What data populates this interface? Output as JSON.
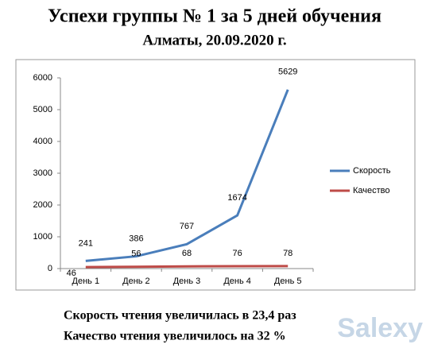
{
  "chart_data": {
    "type": "line",
    "title": "Успехи группы № 1 за 5 дней обучения",
    "subtitle": "Алматы, 20.09.2020 г.",
    "categories": [
      "День 1",
      "День 2",
      "День 3",
      "День 4",
      "День 5"
    ],
    "series": [
      {
        "name": "Скорость",
        "color": "#4a7ebb",
        "values": [
          241,
          386,
          767,
          1674,
          5629
        ]
      },
      {
        "name": "Качество",
        "color": "#be4b48",
        "values": [
          46,
          56,
          68,
          76,
          78
        ]
      }
    ],
    "ylim": [
      0,
      6000
    ],
    "yticks": [
      0,
      1000,
      2000,
      3000,
      4000,
      5000,
      6000
    ],
    "grid": false,
    "legend": "right",
    "notes": [
      "Скорость чтения увеличилась в 23,4 раз",
      "Качество чтения увеличилось на 32 %"
    ],
    "watermark": "Salexy"
  }
}
